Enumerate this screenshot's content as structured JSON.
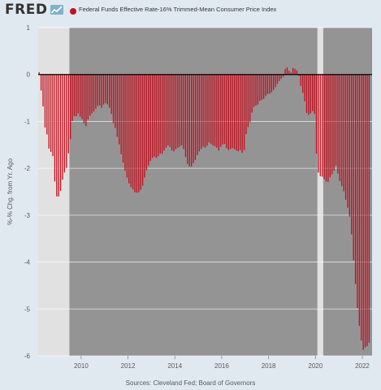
{
  "header": {
    "logo": "FRED",
    "legend_label": "Federal Funds Effective Rate-16% Trimmed-Mean Consumer Price Index"
  },
  "footer": {
    "source": "Sources: Cleveland Fed; Board of Governors"
  },
  "colors": {
    "series": "#c10f1e",
    "plot_background": "#949494",
    "recession_shade": "#e1e1e1",
    "page_background": "#e1e9f0",
    "zero_line": "#000000",
    "grid": "#ffffff"
  },
  "chart_data": {
    "type": "bar",
    "ylabel": "%-% Chg. from Yr. Ago",
    "xlabel": "",
    "ylim": [
      -6,
      1
    ],
    "yticks": [
      1,
      0,
      -1,
      -2,
      -3,
      -4,
      -5,
      -6
    ],
    "xlim": [
      "2008-03",
      "2022-06"
    ],
    "xticks": [
      "2010",
      "2012",
      "2014",
      "2016",
      "2018",
      "2020",
      "2022"
    ],
    "grid": true,
    "legend_position": "top-left",
    "recessions": [
      {
        "start": "2008-03",
        "end": "2009-06"
      },
      {
        "start": "2020-02",
        "end": "2020-04"
      }
    ],
    "series": [
      {
        "name": "Federal Funds Effective Rate-16% Trimmed-Mean Consumer Price Index",
        "start": "2008-03",
        "frequency": "monthly",
        "values": [
          0.05,
          -0.34,
          -0.68,
          -1.13,
          -1.28,
          -1.58,
          -1.65,
          -1.74,
          -2.28,
          -2.6,
          -2.6,
          -2.48,
          -2.24,
          -2.09,
          -1.99,
          -1.68,
          -1.38,
          -0.99,
          -0.89,
          -0.89,
          -0.83,
          -0.9,
          -0.95,
          -1.04,
          -1.1,
          -0.96,
          -0.88,
          -0.83,
          -0.79,
          -0.73,
          -0.67,
          -0.66,
          -0.71,
          -0.64,
          -0.61,
          -0.64,
          -0.71,
          -0.84,
          -1.04,
          -1.14,
          -1.33,
          -1.49,
          -1.7,
          -1.88,
          -2.05,
          -2.2,
          -2.32,
          -2.4,
          -2.45,
          -2.51,
          -2.52,
          -2.51,
          -2.46,
          -2.37,
          -2.2,
          -2.04,
          -1.94,
          -1.84,
          -1.78,
          -1.75,
          -1.78,
          -1.74,
          -1.69,
          -1.69,
          -1.62,
          -1.56,
          -1.51,
          -1.55,
          -1.62,
          -1.64,
          -1.59,
          -1.56,
          -1.54,
          -1.51,
          -1.59,
          -1.76,
          -1.91,
          -1.96,
          -1.96,
          -1.89,
          -1.82,
          -1.72,
          -1.64,
          -1.59,
          -1.54,
          -1.56,
          -1.52,
          -1.45,
          -1.48,
          -1.51,
          -1.53,
          -1.56,
          -1.62,
          -1.54,
          -1.49,
          -1.48,
          -1.57,
          -1.61,
          -1.59,
          -1.57,
          -1.59,
          -1.62,
          -1.64,
          -1.61,
          -1.67,
          -1.61,
          -1.27,
          -1.12,
          -1.02,
          -0.81,
          -0.69,
          -0.66,
          -0.64,
          -0.56,
          -0.54,
          -0.52,
          -0.46,
          -0.42,
          -0.41,
          -0.38,
          -0.33,
          -0.27,
          -0.2,
          -0.14,
          -0.09,
          -0.05,
          0.12,
          0.15,
          0.08,
          0.04,
          0.14,
          0.12,
          0.09,
          -0.03,
          -0.24,
          -0.39,
          -0.57,
          -0.82,
          -0.86,
          -0.83,
          -0.78,
          -0.84,
          -1.69,
          -2.09,
          -2.17,
          -2.18,
          -2.23,
          -2.28,
          -2.29,
          -2.19,
          -2.13,
          -2.05,
          -1.94,
          -2.11,
          -2.27,
          -2.38,
          -2.49,
          -2.67,
          -2.84,
          -3.03,
          -3.41,
          -3.96,
          -4.47,
          -4.98,
          -5.36,
          -5.67,
          -5.87,
          -5.82,
          -5.79,
          -5.72
        ]
      }
    ]
  }
}
